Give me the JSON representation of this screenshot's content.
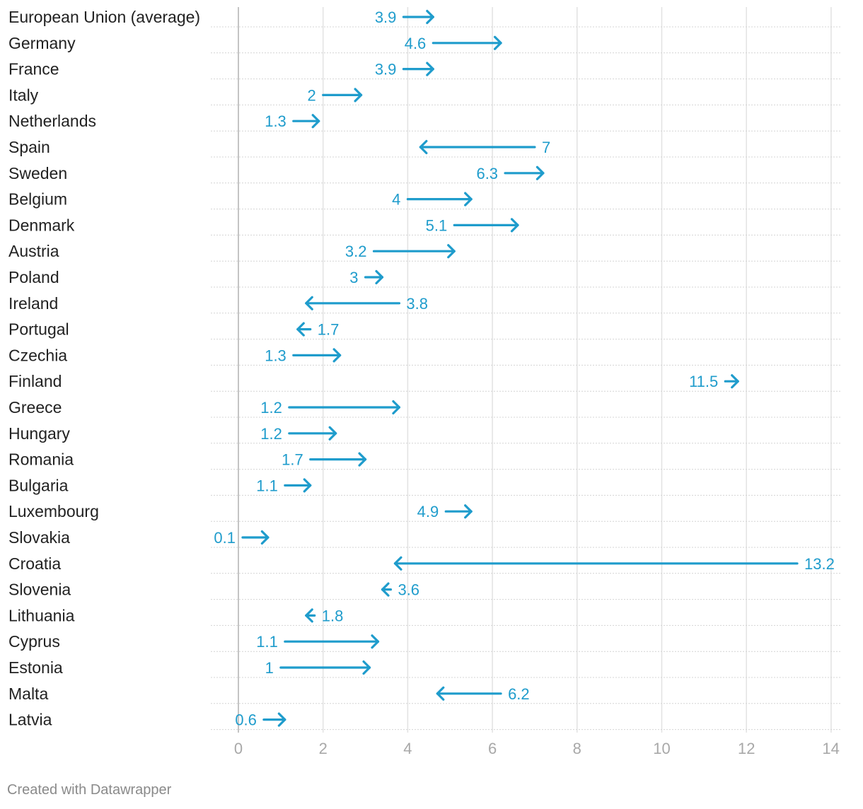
{
  "chart_data": {
    "type": "arrow",
    "title": "",
    "xlabel": "",
    "ylabel": "",
    "xlim": [
      0,
      14
    ],
    "x_ticks": [
      0,
      2,
      4,
      6,
      8,
      10,
      12,
      14
    ],
    "accent_color": "#1f9ccc",
    "grid": true,
    "rows": [
      {
        "country": "European Union (average)",
        "start": 3.9,
        "end": 4.6,
        "label": "3.9"
      },
      {
        "country": "Germany",
        "start": 4.6,
        "end": 6.2,
        "label": "4.6"
      },
      {
        "country": "France",
        "start": 3.9,
        "end": 4.6,
        "label": "3.9"
      },
      {
        "country": "Italy",
        "start": 2,
        "end": 2.9,
        "label": "2"
      },
      {
        "country": "Netherlands",
        "start": 1.3,
        "end": 1.9,
        "label": "1.3"
      },
      {
        "country": "Spain",
        "start": 7,
        "end": 4.3,
        "label": "7"
      },
      {
        "country": "Sweden",
        "start": 6.3,
        "end": 7.2,
        "label": "6.3"
      },
      {
        "country": "Belgium",
        "start": 4,
        "end": 5.5,
        "label": "4"
      },
      {
        "country": "Denmark",
        "start": 5.1,
        "end": 6.6,
        "label": "5.1"
      },
      {
        "country": "Austria",
        "start": 3.2,
        "end": 5.1,
        "label": "3.2"
      },
      {
        "country": "Poland",
        "start": 3,
        "end": 3.4,
        "label": "3"
      },
      {
        "country": "Ireland",
        "start": 3.8,
        "end": 1.6,
        "label": "3.8"
      },
      {
        "country": "Portugal",
        "start": 1.7,
        "end": 1.4,
        "label": "1.7"
      },
      {
        "country": "Czechia",
        "start": 1.3,
        "end": 2.4,
        "label": "1.3"
      },
      {
        "country": "Finland",
        "start": 11.5,
        "end": 11.8,
        "label": "11.5"
      },
      {
        "country": "Greece",
        "start": 1.2,
        "end": 3.8,
        "label": "1.2"
      },
      {
        "country": "Hungary",
        "start": 1.2,
        "end": 2.3,
        "label": "1.2"
      },
      {
        "country": "Romania",
        "start": 1.7,
        "end": 3,
        "label": "1.7"
      },
      {
        "country": "Bulgaria",
        "start": 1.1,
        "end": 1.7,
        "label": "1.1"
      },
      {
        "country": "Luxembourg",
        "start": 4.9,
        "end": 5.5,
        "label": "4.9"
      },
      {
        "country": "Slovakia",
        "start": 0.1,
        "end": 0.7,
        "label": "0.1"
      },
      {
        "country": "Croatia",
        "start": 13.2,
        "end": 3.7,
        "label": "13.2"
      },
      {
        "country": "Slovenia",
        "start": 3.6,
        "end": 3.4,
        "label": "3.6"
      },
      {
        "country": "Lithuania",
        "start": 1.8,
        "end": 1.6,
        "label": "1.8"
      },
      {
        "country": "Cyprus",
        "start": 1.1,
        "end": 3.3,
        "label": "1.1"
      },
      {
        "country": "Estonia",
        "start": 1,
        "end": 3.1,
        "label": "1"
      },
      {
        "country": "Malta",
        "start": 6.2,
        "end": 4.7,
        "label": "6.2"
      },
      {
        "country": "Latvia",
        "start": 0.6,
        "end": 1.1,
        "label": "0.6"
      }
    ]
  },
  "footer": {
    "credit": "Created with Datawrapper"
  }
}
